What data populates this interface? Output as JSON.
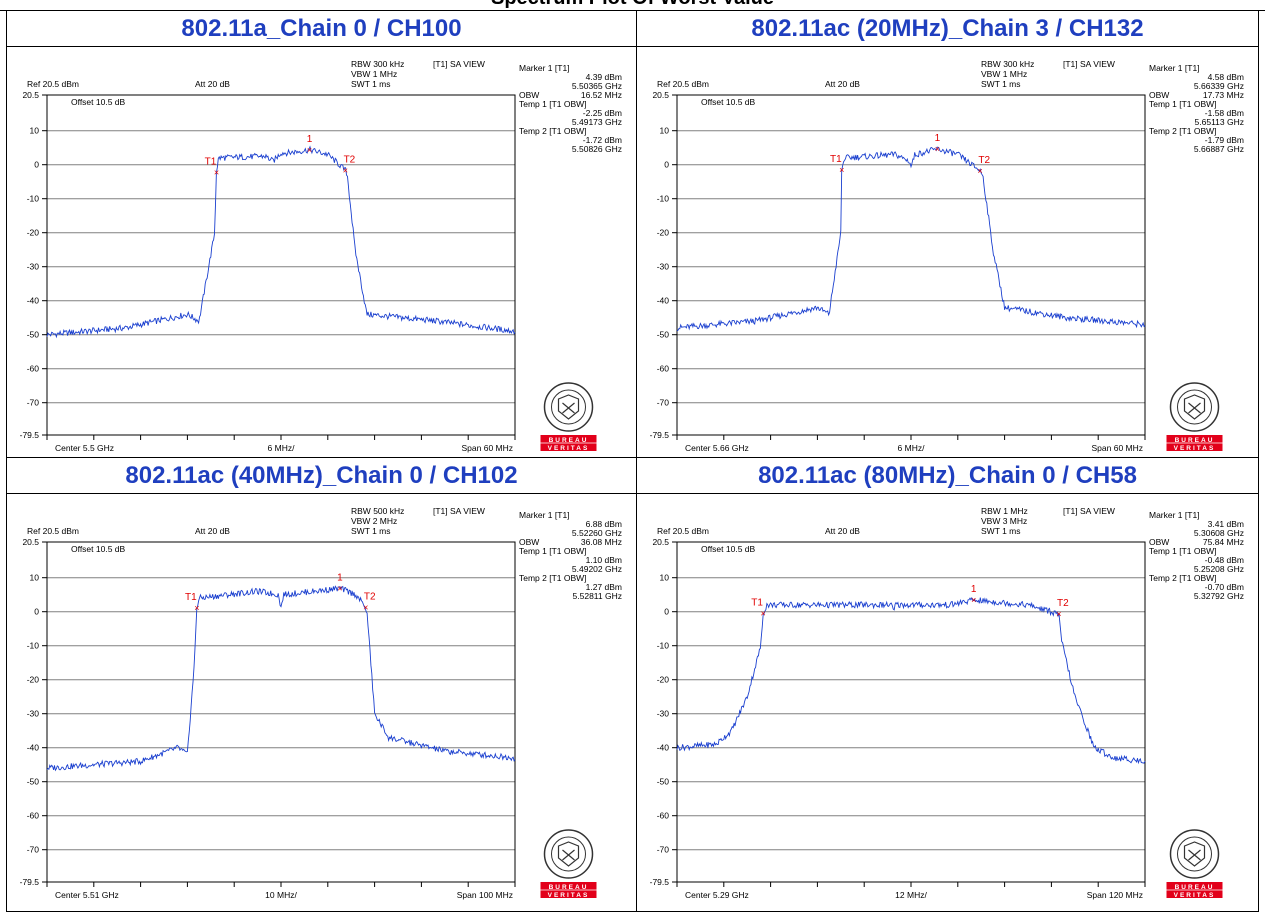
{
  "page": {
    "title": "Spectrum Plot Of Worst Value"
  },
  "chart_data": [
    {
      "type": "line",
      "title": "802.11a_Chain 0 / CH100",
      "header": {
        "ref": "Ref 20.5 dBm",
        "att": "Att  20 dB",
        "rbw": "RBW 300 kHz",
        "vbw": "VBW 1 MHz",
        "swt": "SWT 1 ms",
        "view": "[T1] SA VIEW",
        "offset": "Offset 10.5 dB"
      },
      "xaxis": {
        "center": "Center 5.5 GHz",
        "div": "6 MHz/",
        "span": "Span 60 MHz",
        "span_mhz": 60
      },
      "yaxis": {
        "ticks": [
          "20.5",
          "10",
          "0",
          "-10",
          "-20",
          "-30",
          "-40",
          "-50",
          "-60",
          "-70",
          "-79.5"
        ],
        "ylim": [
          -79.5,
          20.5
        ]
      },
      "markers": [
        {
          "label": "Marker 1 [T1]",
          "value": "4.39 dBm",
          "freq": "5.50365 GHz"
        },
        {
          "label": "OBW",
          "value": "16.52 MHz"
        },
        {
          "label": "Temp 1 [T1 OBW]",
          "value": "-2.25 dBm",
          "freq": "5.49173 GHz"
        },
        {
          "label": "Temp 2 [T1 OBW]",
          "value": "-1.72 dBm",
          "freq": "5.50826 GHz"
        }
      ],
      "trace": {
        "x_mhz": [
          -30,
          -20,
          -12,
          -10.5,
          -8.5,
          -8.3,
          -8,
          -2,
          -1,
          0,
          1,
          3.7,
          6,
          8.3,
          8.5,
          9.5,
          11,
          20,
          30
        ],
        "dbm": [
          -50,
          -48,
          -44,
          -46,
          -20,
          -2.25,
          2,
          2.5,
          1,
          3.5,
          3.5,
          4.39,
          3,
          -1.72,
          -3,
          -25,
          -44,
          -46,
          -49
        ]
      },
      "marker_points": [
        {
          "name": "1",
          "x_mhz": 3.65,
          "dbm": 4.39
        },
        {
          "name": "T1",
          "x_mhz": -8.27,
          "dbm": -2.25
        },
        {
          "name": "T2",
          "x_mhz": 8.26,
          "dbm": -1.72
        }
      ],
      "logo": {
        "top": "BUREAU",
        "bottom": "VERITAS",
        "year": "1828"
      }
    },
    {
      "type": "line",
      "title": "802.11ac (20MHz)_Chain 3 / CH132",
      "header": {
        "ref": "Ref 20.5 dBm",
        "att": "Att  20 dB",
        "rbw": "RBW 300 kHz",
        "vbw": "VBW 1 MHz",
        "swt": "SWT 1 ms",
        "view": "[T1] SA VIEW",
        "offset": "Offset 10.5 dB"
      },
      "xaxis": {
        "center": "Center 5.66 GHz",
        "div": "6 MHz/",
        "span": "Span 60 MHz",
        "span_mhz": 60
      },
      "yaxis": {
        "ticks": [
          "20.5",
          "10",
          "0",
          "-10",
          "-20",
          "-30",
          "-40",
          "-50",
          "-60",
          "-70",
          "-79.5"
        ],
        "ylim": [
          -79.5,
          20.5
        ]
      },
      "markers": [
        {
          "label": "Marker 1 [T1]",
          "value": "4.58 dBm",
          "freq": "5.66339 GHz"
        },
        {
          "label": "OBW",
          "value": "17.73 MHz"
        },
        {
          "label": "Temp 1 [T1 OBW]",
          "value": "-1.58 dBm",
          "freq": "5.65113 GHz"
        },
        {
          "label": "Temp 2 [T1 OBW]",
          "value": "-1.79 dBm",
          "freq": "5.66887 GHz"
        }
      ],
      "trace": {
        "x_mhz": [
          -30,
          -20,
          -12,
          -10.5,
          -9,
          -8.9,
          -8.5,
          -2,
          -0.2,
          0,
          0.5,
          3.4,
          6,
          8.87,
          9.2,
          10.5,
          12,
          20,
          30
        ],
        "dbm": [
          -48,
          -46,
          -42,
          -44,
          -20,
          -1.58,
          2,
          3,
          1,
          -0.5,
          3,
          4.58,
          3,
          -1.79,
          -3,
          -25,
          -42,
          -45,
          -47
        ]
      },
      "marker_points": [
        {
          "name": "1",
          "x_mhz": 3.39,
          "dbm": 4.58
        },
        {
          "name": "T1",
          "x_mhz": -8.87,
          "dbm": -1.58
        },
        {
          "name": "T2",
          "x_mhz": 8.87,
          "dbm": -1.79
        }
      ],
      "logo": {
        "top": "BUREAU",
        "bottom": "VERITAS",
        "year": "1828"
      }
    },
    {
      "type": "line",
      "title": "802.11ac (40MHz)_Chain 0 / CH102",
      "header": {
        "ref": "Ref 20.5 dBm",
        "att": "Att  20 dB",
        "rbw": "RBW 500 kHz",
        "vbw": "VBW 2 MHz",
        "swt": "SWT 1 ms",
        "view": "[T1] SA VIEW",
        "offset": "Offset 10.5 dB"
      },
      "xaxis": {
        "center": "Center 5.51 GHz",
        "div": "10 MHz/",
        "span": "Span 100 MHz",
        "span_mhz": 100
      },
      "yaxis": {
        "ticks": [
          "20.5",
          "10",
          "0",
          "-10",
          "-20",
          "-30",
          "-40",
          "-50",
          "-60",
          "-70",
          "-79.5"
        ],
        "ylim": [
          -79.5,
          20.5
        ]
      },
      "markers": [
        {
          "label": "Marker 1 [T1]",
          "value": "6.88 dBm",
          "freq": "5.52260 GHz"
        },
        {
          "label": "OBW",
          "value": "36.08 MHz"
        },
        {
          "label": "Temp 1 [T1 OBW]",
          "value": "1.10 dBm",
          "freq": "5.49202 GHz"
        },
        {
          "label": "Temp 2 [T1 OBW]",
          "value": "1.27 dBm",
          "freq": "5.52811 GHz"
        }
      ],
      "trace": {
        "x_mhz": [
          -50,
          -30,
          -22,
          -20,
          -18.5,
          -18,
          -17.5,
          -5,
          -0.5,
          0,
          0.5,
          12.6,
          16,
          18.1,
          18.5,
          20,
          23,
          35,
          50
        ],
        "dbm": [
          -46,
          -44,
          -40,
          -42,
          -15,
          1.1,
          4,
          6,
          5,
          1,
          5,
          6.88,
          5,
          1.27,
          -2,
          -30,
          -37,
          -41,
          -43
        ]
      },
      "marker_points": [
        {
          "name": "1",
          "x_mhz": 12.6,
          "dbm": 6.88
        },
        {
          "name": "T1",
          "x_mhz": -17.98,
          "dbm": 1.1
        },
        {
          "name": "T2",
          "x_mhz": 18.11,
          "dbm": 1.27
        }
      ],
      "logo": {
        "top": "BUREAU",
        "bottom": "VERITAS",
        "year": "1828"
      }
    },
    {
      "type": "line",
      "title": "802.11ac (80MHz)_Chain 0 / CH58",
      "header": {
        "ref": "Ref 20.5 dBm",
        "att": "Att  20 dB",
        "rbw": "RBW 1 MHz",
        "vbw": "VBW 3 MHz",
        "swt": "SWT 1 ms",
        "view": "[T1] SA VIEW",
        "offset": "Offset 10.5 dB"
      },
      "xaxis": {
        "center": "Center 5.29 GHz",
        "div": "12 MHz/",
        "span": "Span 120 MHz",
        "span_mhz": 120
      },
      "yaxis": {
        "ticks": [
          "20.5",
          "10",
          "0",
          "-10",
          "-20",
          "-30",
          "-40",
          "-50",
          "-60",
          "-70",
          "-79.5"
        ],
        "ylim": [
          -79.5,
          20.5
        ]
      },
      "markers": [
        {
          "label": "Marker 1 [T1]",
          "value": "3.41 dBm",
          "freq": "5.30608 GHz"
        },
        {
          "label": "OBW",
          "value": "75.84 MHz"
        },
        {
          "label": "Temp 1 [T1 OBW]",
          "value": "-0.48 dBm",
          "freq": "5.25208 GHz"
        },
        {
          "label": "Temp 2 [T1 OBW]",
          "value": "-0.70 dBm",
          "freq": "5.32792 GHz"
        }
      ],
      "trace": {
        "x_mhz": [
          -60,
          -50,
          -46,
          -42,
          -38.5,
          -37.9,
          -37,
          -20,
          -5,
          -4.5,
          -4,
          10,
          16.1,
          30,
          37.9,
          38.5,
          42,
          47,
          52,
          60
        ],
        "dbm": [
          -40,
          -39,
          -35,
          -25,
          -10,
          -0.48,
          2,
          2,
          2,
          0,
          2,
          2,
          3.41,
          2,
          -0.7,
          -8,
          -25,
          -40,
          -43,
          -44
        ]
      },
      "marker_points": [
        {
          "name": "1",
          "x_mhz": 16.08,
          "dbm": 3.41
        },
        {
          "name": "T1",
          "x_mhz": -37.92,
          "dbm": -0.48
        },
        {
          "name": "T2",
          "x_mhz": 37.92,
          "dbm": -0.7
        }
      ],
      "logo": {
        "top": "BUREAU",
        "bottom": "VERITAS",
        "year": "1828"
      }
    }
  ]
}
